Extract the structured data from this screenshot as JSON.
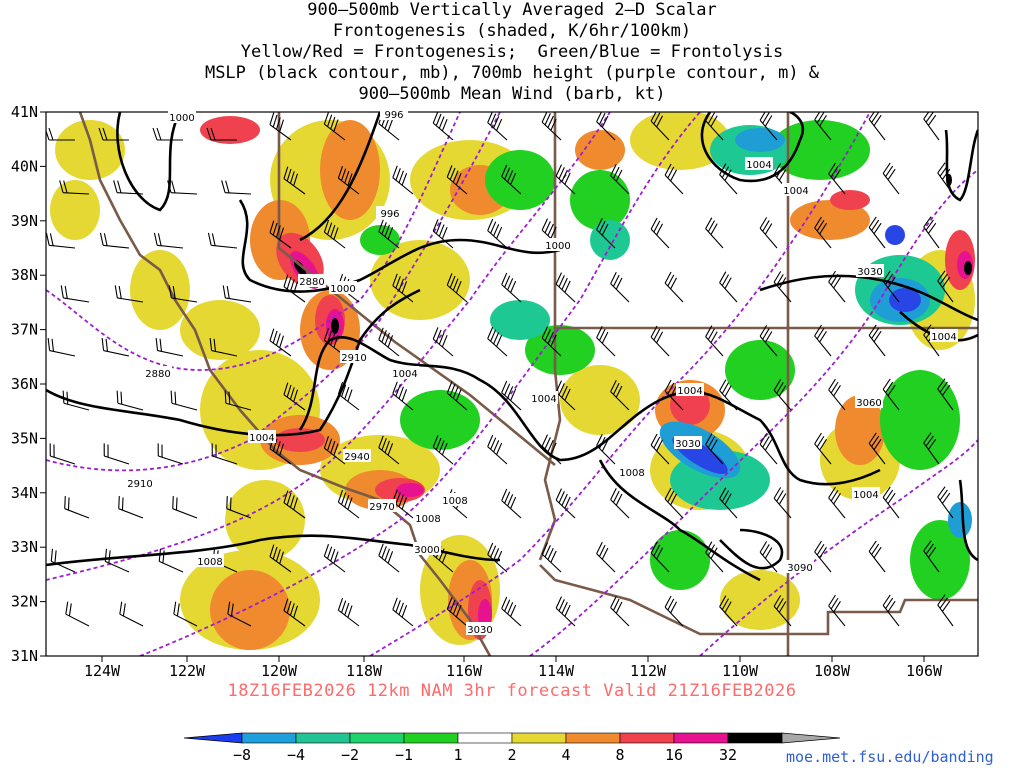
{
  "title": {
    "lines": [
      "900–500mb Vertically Averaged 2–D Scalar",
      "Frontogenesis (shaded, K/6hr/100km)",
      "Yellow/Red = Frontogenesis;  Green/Blue = Frontolysis",
      "MSLP (black contour, mb), 700mb height (purple contour, m) &",
      "900–500mb Mean Wind (barb, kt)"
    ]
  },
  "map": {
    "lat_labels": [
      "41N",
      "40N",
      "39N",
      "38N",
      "37N",
      "36N",
      "35N",
      "34N",
      "33N",
      "32N",
      "31N"
    ],
    "lon_labels": [
      "124W",
      "122W",
      "120W",
      "118W",
      "116W",
      "114W",
      "112W",
      "110W",
      "108W",
      "106W"
    ],
    "mslp_labels": [
      "1000",
      "996",
      "996",
      "1000",
      "1000",
      "1004",
      "1004",
      "1004",
      "1004",
      "1004",
      "1004",
      "1004",
      "1008",
      "1008",
      "1008",
      "1008",
      "1004"
    ],
    "height_labels": [
      "2880",
      "2880",
      "2910",
      "2910",
      "2940",
      "2970",
      "3000",
      "3030",
      "3030",
      "3060",
      "3030",
      "3090"
    ],
    "colors": {
      "mslp_contour": "#000000",
      "height_contour": "#9b1fd0",
      "state_border": "#7a5a48",
      "frontogenesis_weak": "#e6d832",
      "frontogenesis_mod": "#f08a2e",
      "frontogenesis_strong": "#f0424e",
      "frontogenesis_intense": "#e6128f",
      "frontolysis_weak": "#18d018",
      "frontolysis_mod": "#1ec892",
      "frontolysis_strong": "#1f9ed6",
      "frontolysis_intense": "#2846e6"
    }
  },
  "colorbar": {
    "ticks": [
      "−8",
      "−4",
      "−2",
      "−1",
      "1",
      "2",
      "4",
      "8",
      "16",
      "32"
    ],
    "colors": [
      "#1c3cf0",
      "#1fa0dc",
      "#22c496",
      "#1ed26e",
      "#22d022",
      "#ffffff",
      "#e6d832",
      "#f08a2e",
      "#f0424e",
      "#e6128f",
      "#000000",
      "#a8a8a8"
    ]
  },
  "footer": {
    "caption": "18Z16FEB2026 12km NAM 3hr forecast Valid 21Z16FEB2026",
    "credit": "moe.met.fsu.edu/banding"
  }
}
